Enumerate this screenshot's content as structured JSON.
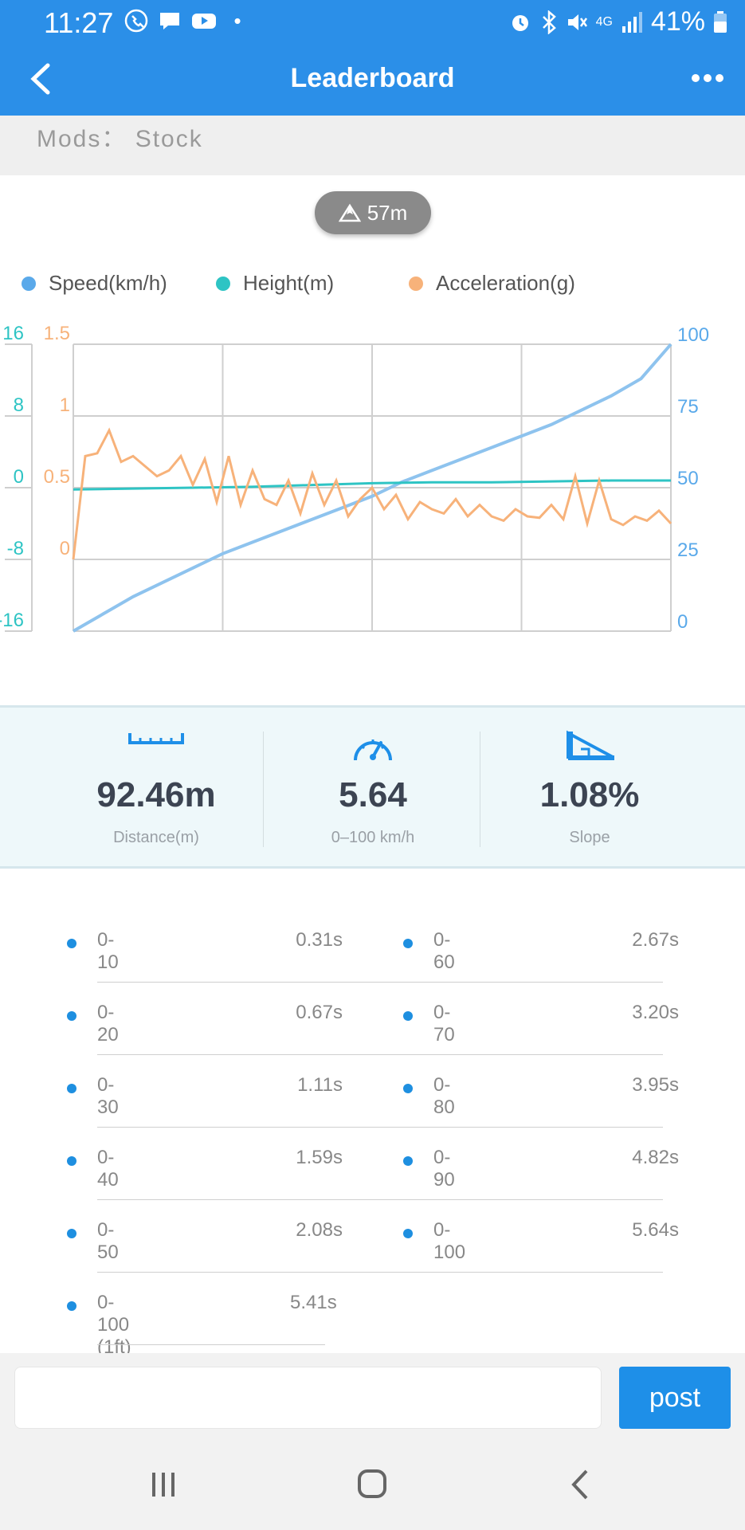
{
  "status_bar": {
    "time": "11:27",
    "signal_label": "4G",
    "battery": "41%"
  },
  "app_bar": {
    "title": "Leaderboard"
  },
  "mods": {
    "text": "Mods： Stock"
  },
  "altitude_badge": {
    "value": "57m"
  },
  "legend": [
    {
      "label": "Speed(km/h)",
      "color": "#5aa9ea"
    },
    {
      "label": "Height(m)",
      "color": "#2ec4c4"
    },
    {
      "label": "Acceleration(g)",
      "color": "#f7b27a"
    }
  ],
  "chart_data": {
    "type": "line",
    "height_axis": {
      "ticks": [
        "16",
        "8",
        "0",
        "-8",
        "-16"
      ],
      "ylim": [
        -16,
        16
      ]
    },
    "accel_axis": {
      "ticks": [
        "1.5",
        "1",
        "0.5",
        "0"
      ],
      "ylim": [
        -0.5,
        1.5
      ]
    },
    "speed_axis": {
      "ticks": [
        "100",
        "75",
        "50",
        "25",
        "0"
      ],
      "ylim": [
        0,
        100
      ]
    },
    "grid": true,
    "series": [
      {
        "name": "Speed(km/h)",
        "color": "#8ec3ee",
        "x": [
          0,
          0.05,
          0.1,
          0.15,
          0.2,
          0.25,
          0.3,
          0.35,
          0.4,
          0.45,
          0.5,
          0.55,
          0.6,
          0.65,
          0.7,
          0.75,
          0.8,
          0.85,
          0.9,
          0.95,
          1
        ],
        "values": [
          0,
          6,
          12,
          17,
          22,
          27,
          31,
          35,
          39,
          43,
          47,
          52,
          56,
          60,
          64,
          68,
          72,
          77,
          82,
          88,
          100
        ]
      },
      {
        "name": "Height(m)",
        "color": "#2ec4c4",
        "x": [
          0,
          0.1,
          0.2,
          0.3,
          0.4,
          0.5,
          0.6,
          0.7,
          0.8,
          0.9,
          1
        ],
        "values": [
          -0.2,
          -0.1,
          0,
          0.1,
          0.3,
          0.5,
          0.6,
          0.6,
          0.7,
          0.8,
          0.8
        ]
      },
      {
        "name": "Acceleration(g)",
        "color": "#f7b27a",
        "x": [
          0,
          0.02,
          0.04,
          0.06,
          0.08,
          0.1,
          0.12,
          0.14,
          0.16,
          0.18,
          0.2,
          0.22,
          0.24,
          0.26,
          0.28,
          0.3,
          0.32,
          0.34,
          0.36,
          0.38,
          0.4,
          0.42,
          0.44,
          0.46,
          0.48,
          0.5,
          0.52,
          0.54,
          0.56,
          0.58,
          0.6,
          0.62,
          0.64,
          0.66,
          0.68,
          0.7,
          0.72,
          0.74,
          0.76,
          0.78,
          0.8,
          0.82,
          0.84,
          0.86,
          0.88,
          0.9,
          0.92,
          0.94,
          0.96,
          0.98,
          1
        ],
        "values": [
          0,
          0.72,
          0.74,
          0.9,
          0.68,
          0.72,
          0.65,
          0.58,
          0.62,
          0.72,
          0.52,
          0.7,
          0.4,
          0.72,
          0.38,
          0.62,
          0.42,
          0.38,
          0.55,
          0.32,
          0.6,
          0.38,
          0.55,
          0.3,
          0.42,
          0.5,
          0.35,
          0.45,
          0.28,
          0.4,
          0.35,
          0.32,
          0.42,
          0.3,
          0.38,
          0.3,
          0.27,
          0.35,
          0.3,
          0.29,
          0.38,
          0.28,
          0.58,
          0.25,
          0.55,
          0.28,
          0.24,
          0.3,
          0.27,
          0.34,
          0.25
        ]
      }
    ]
  },
  "stats": [
    {
      "value": "92.46m",
      "label": "Distance(m)",
      "icon": "ruler-icon"
    },
    {
      "value": "5.64",
      "label": "0–100 km/h",
      "icon": "speedometer-icon"
    },
    {
      "value": "1.08%",
      "label": "Slope",
      "icon": "slope-icon"
    }
  ],
  "times_left": [
    {
      "range": "0-10",
      "time": "0.31s"
    },
    {
      "range": "0-20",
      "time": "0.67s"
    },
    {
      "range": "0-30",
      "time": "1.11s"
    },
    {
      "range": "0-40",
      "time": "1.59s"
    },
    {
      "range": "0-50",
      "time": "2.08s"
    },
    {
      "range": "0-100 (1ft)",
      "time": "5.41s"
    }
  ],
  "times_right": [
    {
      "range": "0-60",
      "time": "2.67s"
    },
    {
      "range": "0-70",
      "time": "3.20s"
    },
    {
      "range": "0-80",
      "time": "3.95s"
    },
    {
      "range": "0-90",
      "time": "4.82s"
    },
    {
      "range": "0-100",
      "time": "5.64s"
    }
  ],
  "comment": {
    "placeholder": "",
    "post_label": "post"
  },
  "colors": {
    "primary": "#2b8fe8",
    "bullet": "#1e8fe0"
  }
}
